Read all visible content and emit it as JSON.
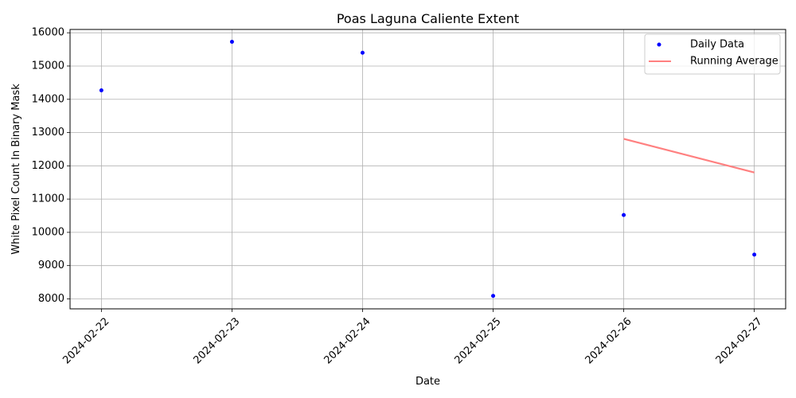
{
  "chart_data": {
    "type": "scatter",
    "title": "Poas Laguna Caliente Extent",
    "xlabel": "Date",
    "ylabel": "White Pixel Count In Binary Mask",
    "x_type": "date",
    "x": [
      "2024-02-22",
      "2024-02-23",
      "2024-02-24",
      "2024-02-25",
      "2024-02-26",
      "2024-02-27"
    ],
    "xlim": [
      "2024-02-21.76",
      "2024-02-27.24"
    ],
    "ylim": [
      7700,
      16100
    ],
    "yticks": [
      8000,
      9000,
      10000,
      11000,
      12000,
      13000,
      14000,
      15000,
      16000
    ],
    "grid": true,
    "legend_position": "top-right",
    "series": [
      {
        "name": "Daily Data",
        "kind": "scatter",
        "color": "#0000ff",
        "x": [
          "2024-02-22",
          "2024-02-23",
          "2024-02-24",
          "2024-02-25",
          "2024-02-26",
          "2024-02-27"
        ],
        "values": [
          14270,
          15730,
          15400,
          8090,
          10520,
          9330
        ]
      },
      {
        "name": "Running Average",
        "kind": "line",
        "color": "#ff8080",
        "x": [
          "2024-02-26",
          "2024-02-27"
        ],
        "values": [
          12810,
          11800
        ]
      }
    ]
  }
}
